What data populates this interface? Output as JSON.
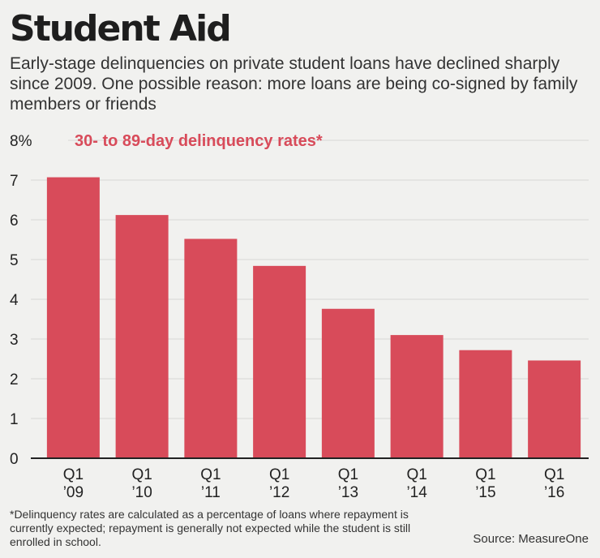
{
  "title": "Student Aid",
  "subtitle": "Early-stage delinquencies on private student loans have declined sharply since 2009. One possible reason: more loans are being co-signed by family members or friends",
  "footnote": "*Delinquency rates are calculated as a percentage of loans where repayment is currently expected; repayment is generally not expected while the student is still enrolled in school.",
  "source": "Source: MeasureOne",
  "colors": {
    "bar": "#d84b5a",
    "series_label": "#d84b5a",
    "grid": "#d6d6d6",
    "axis": "#222222"
  },
  "chart_data": {
    "type": "bar",
    "series_label": "30- to 89-day delinquency rates*",
    "categories": [
      [
        "Q1",
        "’09"
      ],
      [
        "Q1",
        "’10"
      ],
      [
        "Q1",
        "’11"
      ],
      [
        "Q1",
        "’12"
      ],
      [
        "Q1",
        "’13"
      ],
      [
        "Q1",
        "’14"
      ],
      [
        "Q1",
        "’15"
      ],
      [
        "Q1",
        "’16"
      ]
    ],
    "values": [
      7.07,
      6.12,
      5.52,
      4.84,
      3.76,
      3.1,
      2.72,
      2.46
    ],
    "ylim": [
      0,
      8
    ],
    "yticks": [
      {
        "value": 0,
        "label": "0"
      },
      {
        "value": 1,
        "label": "1"
      },
      {
        "value": 2,
        "label": "2"
      },
      {
        "value": 3,
        "label": "3"
      },
      {
        "value": 4,
        "label": "4"
      },
      {
        "value": 5,
        "label": "5"
      },
      {
        "value": 6,
        "label": "6"
      },
      {
        "value": 7,
        "label": "7"
      },
      {
        "value": 8,
        "label": "8%"
      }
    ],
    "grid": true,
    "xlabel": "",
    "ylabel": ""
  }
}
